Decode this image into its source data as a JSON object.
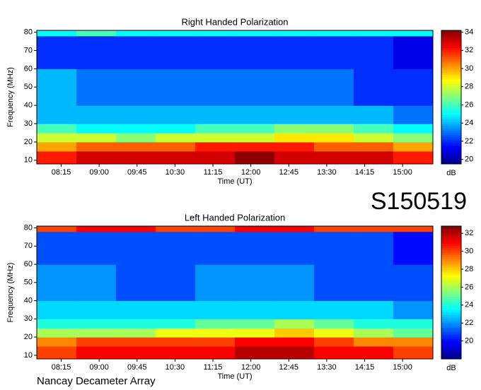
{
  "chart_data": [
    {
      "type": "heatmap",
      "title": "Right Handed Polarization",
      "xlabel": "Time (UT)",
      "ylabel": "Frequency (MHz)",
      "colorbar_label": "dB",
      "colormap": "jet",
      "xlim": [
        466,
        936
      ],
      "ylim": [
        8,
        81
      ],
      "clim": [
        19.5,
        34.2
      ],
      "xticks": [
        {
          "value": 495,
          "label": "08:15"
        },
        {
          "value": 540,
          "label": "09:00"
        },
        {
          "value": 585,
          "label": "09:45"
        },
        {
          "value": 630,
          "label": "10:30"
        },
        {
          "value": 675,
          "label": "11:15"
        },
        {
          "value": 720,
          "label": "12:00"
        },
        {
          "value": 765,
          "label": "12:45"
        },
        {
          "value": 810,
          "label": "13:30"
        },
        {
          "value": 855,
          "label": "14:15"
        },
        {
          "value": 900,
          "label": "15:00"
        }
      ],
      "yticks": [
        10,
        20,
        30,
        40,
        50,
        60,
        70,
        80
      ],
      "cticks": [
        20,
        22,
        24,
        26,
        28,
        30,
        32,
        34
      ],
      "xbins": [
        466,
        513,
        560,
        607,
        654,
        701,
        748,
        795,
        842,
        889,
        936
      ],
      "ybins": [
        8,
        15,
        20,
        25,
        30,
        40,
        60,
        78,
        81
      ],
      "z": [
        [
          32,
          33,
          33,
          33,
          33,
          34,
          33,
          33,
          33,
          32
        ],
        [
          30,
          31,
          31,
          31,
          32,
          32,
          32,
          31,
          31,
          30
        ],
        [
          28,
          28,
          27,
          28,
          28,
          28,
          29,
          29,
          28,
          27
        ],
        [
          26,
          25,
          25,
          25,
          26,
          26,
          27,
          27,
          26,
          25
        ],
        [
          24,
          24,
          24,
          24,
          24,
          24,
          24,
          24,
          24,
          23
        ],
        [
          24,
          23,
          23,
          23,
          23,
          23,
          23,
          23,
          22,
          22
        ],
        [
          22,
          22,
          22,
          22,
          22,
          22,
          22,
          22,
          22,
          21
        ],
        [
          25,
          26,
          25,
          25,
          25,
          25,
          25,
          25,
          25,
          25
        ]
      ]
    },
    {
      "type": "heatmap",
      "title": "Left Handed Polarization",
      "xlabel": "Time (UT)",
      "ylabel": "Frequency (MHz)",
      "colorbar_label": "dB",
      "colormap": "jet",
      "xlim": [
        466,
        936
      ],
      "ylim": [
        8,
        81
      ],
      "clim": [
        18,
        32.8
      ],
      "xticks": [
        {
          "value": 495,
          "label": "08:15"
        },
        {
          "value": 540,
          "label": "09:00"
        },
        {
          "value": 585,
          "label": "09:45"
        },
        {
          "value": 630,
          "label": "10:30"
        },
        {
          "value": 675,
          "label": "11:15"
        },
        {
          "value": 720,
          "label": "12:00"
        },
        {
          "value": 765,
          "label": "12:45"
        },
        {
          "value": 810,
          "label": "13:30"
        },
        {
          "value": 855,
          "label": "14:15"
        },
        {
          "value": 900,
          "label": "15:00"
        }
      ],
      "yticks": [
        10,
        20,
        30,
        40,
        50,
        60,
        70,
        80
      ],
      "cticks": [
        20,
        22,
        24,
        26,
        28,
        30,
        32
      ],
      "xbins": [
        466,
        513,
        560,
        607,
        654,
        701,
        748,
        795,
        842,
        889,
        936
      ],
      "ybins": [
        8,
        15,
        20,
        25,
        30,
        40,
        60,
        78,
        81
      ],
      "z": [
        [
          30,
          31,
          31,
          31,
          31,
          32,
          32,
          31,
          31,
          30
        ],
        [
          29,
          30,
          30,
          30,
          30,
          31,
          31,
          30,
          29,
          29
        ],
        [
          26,
          26,
          26,
          27,
          27,
          27,
          28,
          27,
          26,
          25
        ],
        [
          24,
          24,
          24,
          24,
          25,
          25,
          26,
          25,
          24,
          24
        ],
        [
          23,
          23,
          23,
          23,
          23,
          23,
          23,
          23,
          23,
          22
        ],
        [
          22,
          22,
          21,
          21,
          22,
          22,
          22,
          21,
          21,
          21
        ],
        [
          21,
          21,
          21,
          21,
          21,
          21,
          21,
          21,
          21,
          20
        ],
        [
          30,
          31,
          31,
          30,
          30,
          31,
          31,
          30,
          30,
          30
        ]
      ]
    }
  ],
  "observation_id": "S150519",
  "footer": "Nancay Decameter Array"
}
